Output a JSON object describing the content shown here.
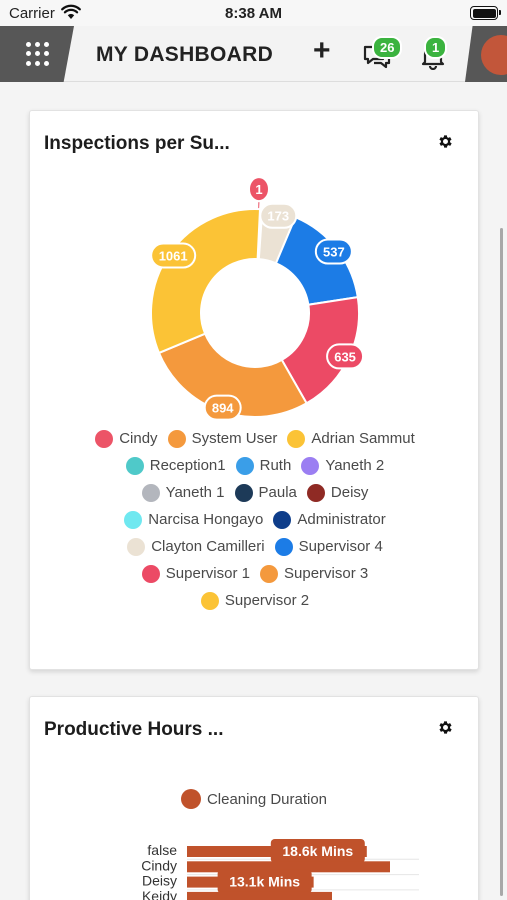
{
  "status_bar": {
    "carrier": "Carrier",
    "time": "8:38 AM"
  },
  "header": {
    "title": "MY DASHBOARD",
    "add_label": "+",
    "messages_count": "26",
    "notifications_count": "1"
  },
  "cards": [
    {
      "title": "Inspections per Su..."
    },
    {
      "title": "Productive Hours ..."
    }
  ],
  "chart_data": [
    {
      "type": "pie",
      "title": "Inspections per Su...",
      "slices": [
        {
          "label": "Cindy",
          "value": 1,
          "color": "#ec5467",
          "data_label": "1"
        },
        {
          "label": "Administrator",
          "value": 11,
          "color": "#0e3d8a",
          "data_label": ""
        },
        {
          "label": "Clayton Camilleri",
          "value": 173,
          "color": "#ebe2d4",
          "data_label": "173"
        },
        {
          "label": "Supervisor 4",
          "value": 537,
          "color": "#1c7ce6",
          "data_label": "537"
        },
        {
          "label": "Supervisor 1",
          "value": 635,
          "color": "#ec4a65",
          "data_label": "635"
        },
        {
          "label": "Supervisor 3",
          "value": 894,
          "color": "#f4993d",
          "data_label": "894"
        },
        {
          "label": "Supervisor 2",
          "value": 1061,
          "color": "#fbc336",
          "data_label": "1061"
        }
      ],
      "legend_rows": [
        [
          {
            "label": "Cindy",
            "color": "#ec5467"
          },
          {
            "label": "System User",
            "color": "#f4993d"
          },
          {
            "label": "Adrian Sammut",
            "color": "#fbc336"
          }
        ],
        [
          {
            "label": "Reception1",
            "color": "#4fc9c9"
          },
          {
            "label": "Ruth",
            "color": "#3a9ee8"
          },
          {
            "label": "Yaneth 2",
            "color": "#9b7ef2"
          }
        ],
        [
          {
            "label": "Yaneth 1",
            "color": "#b3b6bd"
          },
          {
            "label": "Paula",
            "color": "#1d3a58"
          },
          {
            "label": "Deisy",
            "color": "#8f2a24"
          }
        ],
        [
          {
            "label": "Narcisa Hongayo",
            "color": "#6fe8f0"
          },
          {
            "label": "Administrator",
            "color": "#0e3d8a"
          }
        ],
        [
          {
            "label": "Clayton Camilleri",
            "color": "#ebe2d4"
          },
          {
            "label": "Supervisor 4",
            "color": "#1c7ce6"
          }
        ],
        [
          {
            "label": "Supervisor 1",
            "color": "#ec4a65"
          },
          {
            "label": "Supervisor 3",
            "color": "#f4993d"
          }
        ],
        [
          {
            "label": "Supervisor 2",
            "color": "#fbc336"
          }
        ]
      ]
    },
    {
      "type": "bar",
      "orientation": "horizontal",
      "title": "Productive Hours ...",
      "categories": [
        "false",
        "Cindy",
        "Deisy",
        "Keidy"
      ],
      "series": [
        {
          "name": "Cleaning Duration",
          "color": "#c0522b",
          "values": [
            18600,
            21000,
            13100,
            15000
          ]
        }
      ],
      "data_labels": [
        "18.6k Mins",
        "",
        "13.1k Mins",
        ""
      ],
      "legend": "top"
    }
  ]
}
